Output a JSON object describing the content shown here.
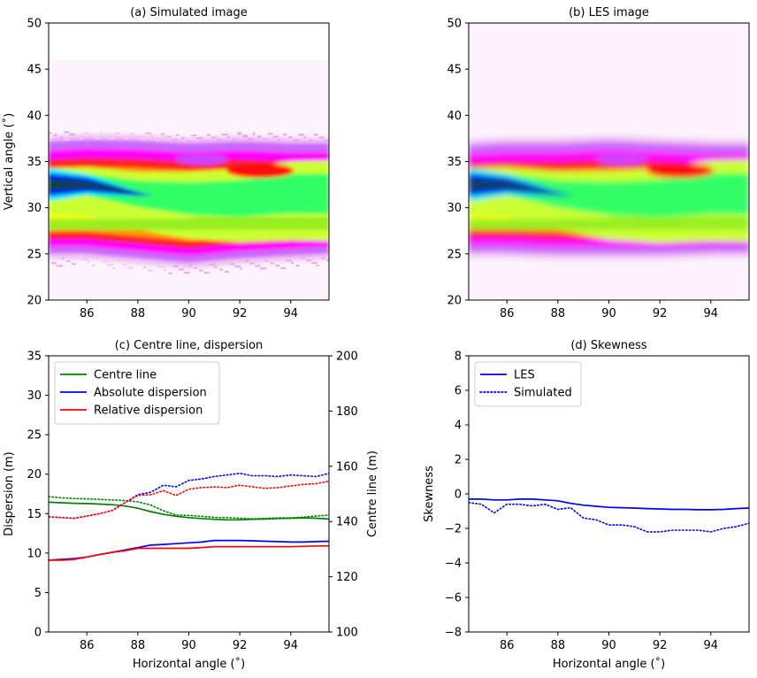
{
  "chart_data": [
    {
      "id": "a",
      "type": "heatmap",
      "title": "(a) Simulated image",
      "xlabel": "",
      "ylabel": "Vertical angle (˚)",
      "xlim": [
        84.5,
        95.5
      ],
      "ylim": [
        20,
        50
      ],
      "xticks": [
        86,
        88,
        90,
        92,
        94
      ],
      "yticks": [
        20,
        25,
        30,
        35,
        40,
        45,
        50
      ],
      "colormap": "gist_ncar_r",
      "plume": {
        "x": [
          84.5,
          86,
          88,
          90,
          92,
          94,
          95.5
        ],
        "top": [
          37.2,
          37.4,
          37.3,
          37.0,
          37.2,
          37.0,
          37.0
        ],
        "bottom": [
          25.0,
          25.0,
          24.5,
          24.0,
          24.5,
          24.8,
          25.0
        ],
        "core_center": [
          32.5,
          32.5,
          31.5,
          31.0,
          31.0,
          31.5,
          31.5
        ],
        "core_width": [
          2.0,
          2.1,
          2.6,
          3.2,
          3.6,
          3.9,
          4.0
        ]
      }
    },
    {
      "id": "b",
      "type": "heatmap",
      "title": "(b) LES image",
      "xlabel": "",
      "ylabel": "",
      "xlim": [
        84.5,
        95.5
      ],
      "ylim": [
        20,
        50
      ],
      "xticks": [
        86,
        88,
        90,
        92,
        94
      ],
      "yticks": [
        20,
        25,
        30,
        35,
        40,
        45,
        50
      ],
      "colormap": "gist_ncar_r",
      "plume": {
        "x": [
          84.5,
          86,
          88,
          90,
          92,
          94,
          95.5
        ],
        "top": [
          36.8,
          37.0,
          37.0,
          37.2,
          37.0,
          36.8,
          36.8
        ],
        "bottom": [
          25.2,
          25.2,
          25.0,
          25.0,
          25.0,
          25.2,
          25.2
        ],
        "core_center": [
          32.5,
          32.5,
          31.5,
          31.0,
          31.0,
          31.5,
          31.5
        ],
        "core_width": [
          2.0,
          2.1,
          2.7,
          3.3,
          3.7,
          4.0,
          4.1
        ]
      }
    },
    {
      "id": "c",
      "type": "line",
      "title": "(c) Centre line, dispersion",
      "xlabel": "Horizontal angle (˚)",
      "ylabel": "Dispersion (m)",
      "y2label": "Centre line (m)",
      "xlim": [
        84.5,
        95.5
      ],
      "ylim": [
        0,
        35
      ],
      "y2lim": [
        100,
        200
      ],
      "xticks": [
        86,
        88,
        90,
        92,
        94
      ],
      "yticks": [
        0,
        5,
        10,
        15,
        20,
        25,
        30,
        35
      ],
      "y2ticks": [
        100,
        120,
        140,
        160,
        180,
        200
      ],
      "legend_position": "upper-left",
      "x": [
        84.5,
        85,
        85.5,
        86,
        86.5,
        87,
        87.5,
        88,
        88.5,
        89,
        89.5,
        90,
        90.5,
        91,
        91.5,
        92,
        92.5,
        93,
        93.5,
        94,
        94.5,
        95,
        95.5
      ],
      "series": [
        {
          "name": "Centre line",
          "axis": "right",
          "style": "solid",
          "color": "#008000",
          "values": [
            147,
            146.8,
            146.6,
            146.5,
            146.3,
            146.1,
            145.6,
            144.8,
            143.6,
            142.6,
            141.9,
            141.4,
            141.1,
            140.8,
            140.6,
            140.6,
            140.8,
            140.9,
            141.1,
            141.2,
            141.3,
            141.2,
            140.9
          ]
        },
        {
          "name": "Absolute dispersion",
          "axis": "left",
          "style": "solid",
          "color": "#0000ff",
          "values": [
            9.1,
            9.2,
            9.3,
            9.5,
            9.8,
            10.1,
            10.4,
            10.7,
            11.0,
            11.1,
            11.2,
            11.3,
            11.4,
            11.6,
            11.6,
            11.6,
            11.55,
            11.5,
            11.45,
            11.4,
            11.4,
            11.45,
            11.5
          ]
        },
        {
          "name": "Relative dispersion",
          "axis": "left",
          "style": "solid",
          "color": "#ff0000",
          "values": [
            9.1,
            9.1,
            9.2,
            9.5,
            9.8,
            10.1,
            10.3,
            10.6,
            10.6,
            10.6,
            10.6,
            10.6,
            10.7,
            10.8,
            10.8,
            10.8,
            10.8,
            10.8,
            10.8,
            10.8,
            10.85,
            10.9,
            10.9
          ]
        },
        {
          "style": "dotted",
          "color": "#008000",
          "axis": "right",
          "values": [
            149,
            148.6,
            148.3,
            148.2,
            148.0,
            147.8,
            147.6,
            147.1,
            146.0,
            143.9,
            142.3,
            142.2,
            141.9,
            141.5,
            141.4,
            141.2,
            141.0,
            141.1,
            141.3,
            141.3,
            141.6,
            142.0,
            142.3
          ]
        },
        {
          "style": "dotted",
          "color": "#0000ff",
          "axis": "left",
          "values": [
            14.6,
            14.5,
            14.4,
            14.7,
            15.0,
            15.4,
            16.4,
            17.4,
            17.7,
            18.6,
            18.4,
            19.2,
            19.4,
            19.7,
            19.9,
            20.1,
            19.8,
            19.8,
            19.7,
            19.9,
            19.8,
            19.7,
            20.1
          ]
        },
        {
          "style": "dotted",
          "color": "#ff0000",
          "axis": "left",
          "values": [
            14.6,
            14.5,
            14.4,
            14.7,
            15.0,
            15.4,
            16.4,
            17.3,
            17.4,
            17.9,
            17.3,
            18.1,
            18.3,
            18.4,
            18.3,
            18.6,
            18.4,
            18.2,
            18.3,
            18.5,
            18.7,
            18.8,
            19.1
          ]
        }
      ]
    },
    {
      "id": "d",
      "type": "line",
      "title": "(d) Skewness",
      "xlabel": "Horizontal angle (˚)",
      "ylabel": "Skewness",
      "xlim": [
        84.5,
        95.5
      ],
      "ylim": [
        -8,
        8
      ],
      "xticks": [
        86,
        88,
        90,
        92,
        94
      ],
      "yticks": [
        -8,
        -6,
        -4,
        -2,
        0,
        2,
        4,
        6,
        8
      ],
      "legend_position": "upper-left",
      "x": [
        84.5,
        85,
        85.5,
        86,
        86.5,
        87,
        87.5,
        88,
        88.5,
        89,
        89.5,
        90,
        90.5,
        91,
        91.5,
        92,
        92.5,
        93,
        93.5,
        94,
        94.5,
        95,
        95.5
      ],
      "series": [
        {
          "name": "LES",
          "style": "solid",
          "color": "#0000ff",
          "values": [
            -0.3,
            -0.3,
            -0.35,
            -0.35,
            -0.3,
            -0.3,
            -0.35,
            -0.4,
            -0.55,
            -0.65,
            -0.72,
            -0.78,
            -0.8,
            -0.82,
            -0.85,
            -0.87,
            -0.9,
            -0.9,
            -0.92,
            -0.92,
            -0.9,
            -0.85,
            -0.82
          ]
        },
        {
          "name": "Simulated",
          "style": "dotted",
          "color": "#0000ff",
          "values": [
            -0.5,
            -0.6,
            -1.1,
            -0.6,
            -0.6,
            -0.7,
            -0.6,
            -0.9,
            -0.8,
            -1.4,
            -1.5,
            -1.8,
            -1.8,
            -1.9,
            -2.2,
            -2.2,
            -2.1,
            -2.1,
            -2.1,
            -2.2,
            -2.0,
            -1.9,
            -1.7
          ]
        }
      ]
    }
  ]
}
